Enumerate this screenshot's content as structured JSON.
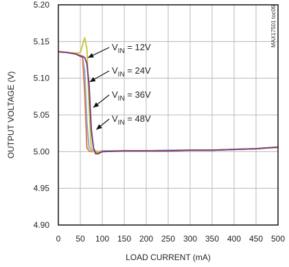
{
  "chart_data": {
    "type": "line",
    "title": "",
    "xlabel": "LOAD CURRENT (mA)",
    "ylabel": "OUTPUT VOLTAGE (V)",
    "xlim": [
      0,
      500
    ],
    "ylim": [
      4.9,
      5.2
    ],
    "x_ticks": [
      0,
      50,
      100,
      150,
      200,
      250,
      300,
      350,
      400,
      450,
      500
    ],
    "y_ticks": [
      4.9,
      4.95,
      5.0,
      5.05,
      5.1,
      5.15,
      5.2
    ],
    "grid": true,
    "watermark": "MAX17501 toc06",
    "series": [
      {
        "name": "VIN = 12V",
        "color": "#7fb2d8",
        "x": [
          0,
          20,
          40,
          50,
          55,
          60,
          65,
          70,
          75,
          80,
          90,
          100,
          150,
          200,
          250,
          300,
          350,
          400,
          450,
          500
        ],
        "y": [
          5.136,
          5.135,
          5.133,
          5.13,
          5.128,
          5.11,
          5.04,
          5.005,
          5.003,
          5.002,
          5.0,
          5.001,
          5.001,
          5.001,
          5.002,
          5.002,
          5.002,
          5.003,
          5.004,
          5.006
        ]
      },
      {
        "name": "VIN = 24V",
        "color": "#e07850",
        "x": [
          0,
          20,
          40,
          50,
          55,
          60,
          65,
          70,
          75,
          80,
          90,
          100,
          150,
          200,
          250,
          300,
          350,
          400,
          450,
          500
        ],
        "y": [
          5.136,
          5.135,
          5.133,
          5.131,
          5.13,
          5.08,
          5.005,
          5.001,
          5.0,
          5.0,
          4.999,
          5.0,
          5.001,
          5.001,
          5.001,
          5.002,
          5.002,
          5.003,
          5.004,
          5.006
        ]
      },
      {
        "name": "VIN = 36V",
        "color": "#c9c94a",
        "x": [
          0,
          20,
          40,
          50,
          55,
          60,
          65,
          70,
          75,
          80,
          90,
          100,
          150,
          200,
          250,
          300,
          350,
          400,
          450,
          500
        ],
        "y": [
          5.136,
          5.135,
          5.134,
          5.135,
          5.145,
          5.155,
          5.14,
          5.06,
          5.002,
          5.0,
          5.0,
          5.0,
          5.001,
          5.001,
          5.001,
          5.002,
          5.002,
          5.003,
          5.004,
          5.006
        ]
      },
      {
        "name": "VIN = 48V",
        "color": "#7a3a7a",
        "x": [
          0,
          20,
          40,
          50,
          55,
          60,
          65,
          70,
          75,
          80,
          85,
          90,
          100,
          150,
          200,
          250,
          300,
          350,
          400,
          450,
          500
        ],
        "y": [
          5.136,
          5.135,
          5.133,
          5.13,
          5.13,
          5.128,
          5.12,
          5.09,
          5.03,
          5.005,
          4.997,
          4.997,
          5.0,
          5.001,
          5.001,
          5.001,
          5.002,
          5.002,
          5.003,
          5.004,
          5.006
        ]
      }
    ],
    "annotations": [
      {
        "text_main": "V",
        "text_sub": "IN",
        "text_rest": " = 12V",
        "series": 0,
        "point": [
          58,
          5.128
        ]
      },
      {
        "text_main": "V",
        "text_sub": "IN",
        "text_rest": " = 24V",
        "series": 1,
        "point": [
          62,
          5.095
        ]
      },
      {
        "text_main": "V",
        "text_sub": "IN",
        "text_rest": " = 36V",
        "series": 2,
        "point": [
          70,
          5.06
        ]
      },
      {
        "text_main": "V",
        "text_sub": "IN",
        "text_rest": " = 48V",
        "series": 3,
        "point": [
          77,
          5.03
        ]
      }
    ]
  }
}
